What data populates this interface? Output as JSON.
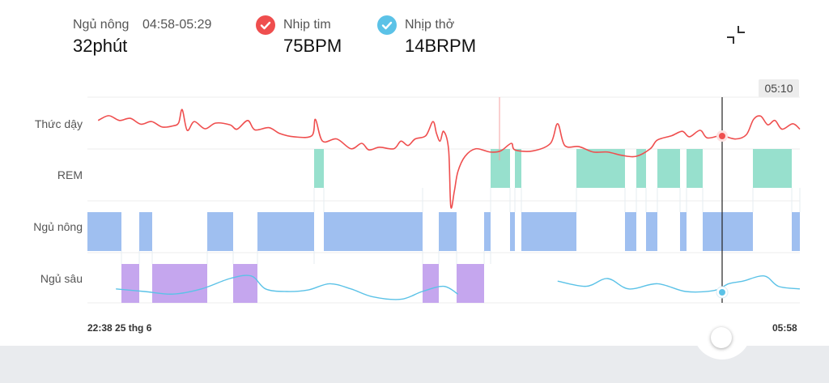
{
  "header": {
    "stage_label": "Ngủ nông",
    "stage_range": "04:58-05:29",
    "stage_duration": "32phút",
    "heart_label": "Nhịp tim",
    "heart_value": "75BPM",
    "breath_label": "Nhịp thở",
    "breath_value": "14BRPM"
  },
  "colors": {
    "heart": "#ef4e4e",
    "breath": "#5bc2e7",
    "rem": "#97e0cd",
    "light": "#9fbff0",
    "deep": "#c5a6ee"
  },
  "icons": {
    "collapse": "collapse-icon",
    "heart_check": "check-icon",
    "breath_check": "check-icon"
  },
  "cursor": {
    "time_label": "05:10"
  },
  "chart_data": {
    "type": "hypnogram",
    "x_start": "22:38 25 thg 6",
    "x_end": "05:58",
    "x_start_label": "22:38",
    "x_start_date": "25 thg 6",
    "stages": [
      "Thức dậy",
      "REM",
      "Ngủ nông",
      "Ngủ sâu"
    ],
    "segments": [
      {
        "stage": "Ngủ nông",
        "start": "22:38",
        "end": "22:59"
      },
      {
        "stage": "Ngủ sâu",
        "start": "22:59",
        "end": "23:10"
      },
      {
        "stage": "Ngủ nông",
        "start": "23:10",
        "end": "23:18"
      },
      {
        "stage": "Ngủ sâu",
        "start": "23:18",
        "end": "23:52"
      },
      {
        "stage": "Ngủ nông",
        "start": "23:52",
        "end": "00:08"
      },
      {
        "stage": "Ngủ sâu",
        "start": "00:08",
        "end": "00:23"
      },
      {
        "stage": "Ngủ nông",
        "start": "00:23",
        "end": "00:58"
      },
      {
        "stage": "REM",
        "start": "00:58",
        "end": "01:04"
      },
      {
        "stage": "Ngủ nông",
        "start": "01:04",
        "end": "02:05"
      },
      {
        "stage": "Ngủ sâu",
        "start": "02:05",
        "end": "02:15"
      },
      {
        "stage": "Ngủ nông",
        "start": "02:15",
        "end": "02:26"
      },
      {
        "stage": "Ngủ sâu",
        "start": "02:26",
        "end": "02:43"
      },
      {
        "stage": "Ngủ nông",
        "start": "02:43",
        "end": "02:47"
      },
      {
        "stage": "REM",
        "start": "02:47",
        "end": "02:59"
      },
      {
        "stage": "Ngủ nông",
        "start": "02:59",
        "end": "03:02"
      },
      {
        "stage": "REM",
        "start": "03:02",
        "end": "03:06"
      },
      {
        "stage": "Ngủ nông",
        "start": "03:06",
        "end": "03:40"
      },
      {
        "stage": "REM",
        "start": "03:40",
        "end": "04:10"
      },
      {
        "stage": "Ngủ nông",
        "start": "04:10",
        "end": "04:17"
      },
      {
        "stage": "REM",
        "start": "04:17",
        "end": "04:23"
      },
      {
        "stage": "Ngủ nông",
        "start": "04:23",
        "end": "04:30"
      },
      {
        "stage": "REM",
        "start": "04:30",
        "end": "04:44"
      },
      {
        "stage": "Ngủ nông",
        "start": "04:44",
        "end": "04:48"
      },
      {
        "stage": "REM",
        "start": "04:48",
        "end": "04:58"
      },
      {
        "stage": "Ngủ nông",
        "start": "04:58",
        "end": "05:29"
      },
      {
        "stage": "REM",
        "start": "05:29",
        "end": "05:53"
      },
      {
        "stage": "Ngủ nông",
        "start": "05:53",
        "end": "05:58"
      }
    ],
    "heart_rate_line": [
      [
        0.015,
        0.55
      ],
      [
        0.03,
        0.33
      ],
      [
        0.045,
        0.55
      ],
      [
        0.06,
        0.45
      ],
      [
        0.075,
        0.72
      ],
      [
        0.09,
        0.6
      ],
      [
        0.105,
        0.85
      ],
      [
        0.12,
        0.8
      ],
      [
        0.128,
        0.66
      ],
      [
        0.133,
        0.05
      ],
      [
        0.14,
        1.0
      ],
      [
        0.15,
        0.6
      ],
      [
        0.165,
        0.93
      ],
      [
        0.18,
        0.67
      ],
      [
        0.2,
        0.75
      ],
      [
        0.21,
        0.95
      ],
      [
        0.225,
        0.55
      ],
      [
        0.235,
        0.98
      ],
      [
        0.255,
        0.88
      ],
      [
        0.27,
        1.15
      ],
      [
        0.29,
        1.3
      ],
      [
        0.315,
        1.25
      ],
      [
        0.32,
        0.5
      ],
      [
        0.33,
        1.5
      ],
      [
        0.35,
        1.4
      ],
      [
        0.37,
        1.85
      ],
      [
        0.385,
        1.6
      ],
      [
        0.395,
        1.9
      ],
      [
        0.41,
        1.78
      ],
      [
        0.43,
        1.85
      ],
      [
        0.44,
        1.5
      ],
      [
        0.45,
        1.7
      ],
      [
        0.46,
        1.4
      ],
      [
        0.475,
        1.25
      ],
      [
        0.485,
        0.6
      ],
      [
        0.49,
        1.15
      ],
      [
        0.495,
        1.5
      ],
      [
        0.5,
        1.05
      ],
      [
        0.507,
        1.9
      ],
      [
        0.51,
        4.5
      ],
      [
        0.515,
        3.8
      ],
      [
        0.52,
        2.9
      ],
      [
        0.53,
        2.2
      ],
      [
        0.545,
        1.85
      ],
      [
        0.565,
        2.0
      ],
      [
        0.58,
        1.95
      ],
      [
        0.595,
        1.6
      ],
      [
        0.6,
        1.9
      ],
      [
        0.625,
        1.95
      ],
      [
        0.65,
        1.6
      ],
      [
        0.66,
        0.7
      ],
      [
        0.67,
        1.7
      ],
      [
        0.69,
        1.75
      ],
      [
        0.71,
        2.0
      ],
      [
        0.73,
        2.0
      ],
      [
        0.75,
        2.15
      ],
      [
        0.77,
        2.2
      ],
      [
        0.79,
        1.85
      ],
      [
        0.8,
        1.45
      ],
      [
        0.82,
        1.25
      ],
      [
        0.835,
        1.05
      ],
      [
        0.845,
        1.3
      ],
      [
        0.86,
        1.0
      ],
      [
        0.87,
        1.35
      ],
      [
        0.89,
        1.25
      ],
      [
        0.91,
        1.4
      ],
      [
        0.925,
        1.2
      ],
      [
        0.935,
        0.5
      ],
      [
        0.945,
        0.35
      ],
      [
        0.955,
        0.75
      ],
      [
        0.965,
        0.55
      ],
      [
        0.975,
        0.95
      ],
      [
        0.99,
        0.7
      ],
      [
        1.0,
        0.95
      ]
    ],
    "breath_rate_line": [
      [
        0.04,
        3.7
      ],
      [
        0.08,
        3.75
      ],
      [
        0.12,
        3.8
      ],
      [
        0.16,
        3.7
      ],
      [
        0.2,
        3.5
      ],
      [
        0.23,
        3.45
      ],
      [
        0.25,
        3.7
      ],
      [
        0.28,
        3.75
      ],
      [
        0.31,
        3.72
      ],
      [
        0.34,
        3.6
      ],
      [
        0.37,
        3.7
      ],
      [
        0.4,
        3.85
      ],
      [
        0.44,
        3.9
      ],
      [
        0.47,
        3.75
      ],
      [
        0.5,
        3.65
      ],
      [
        0.52,
        3.8
      ],
      null,
      [
        0.66,
        3.55
      ],
      [
        0.7,
        3.65
      ],
      [
        0.73,
        3.5
      ],
      [
        0.76,
        3.7
      ],
      [
        0.8,
        3.6
      ],
      [
        0.84,
        3.75
      ],
      [
        0.88,
        3.73
      ],
      [
        0.9,
        3.6
      ],
      [
        0.92,
        3.55
      ],
      [
        0.95,
        3.45
      ],
      [
        0.97,
        3.65
      ],
      [
        1.0,
        3.7
      ]
    ],
    "cursor_time": "05:10",
    "cursor_heart_rate": 75,
    "cursor_breath_rate": 14
  }
}
